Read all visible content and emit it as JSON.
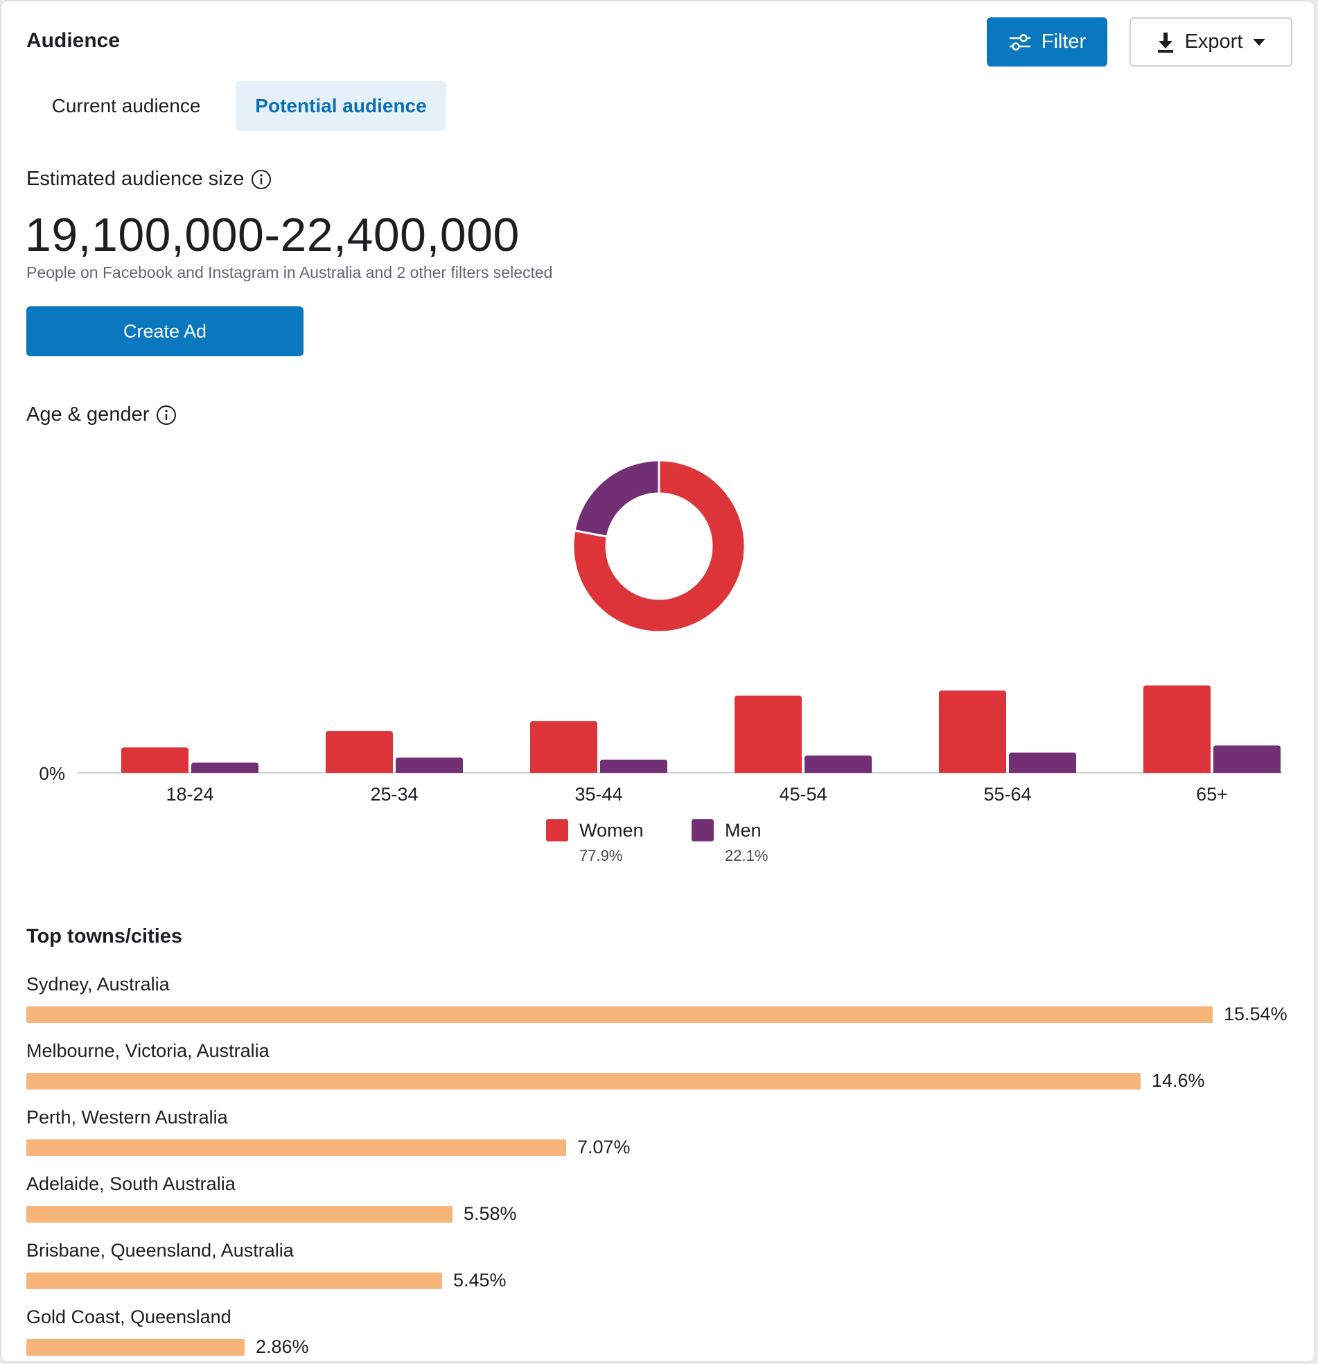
{
  "header": {
    "title": "Audience",
    "filter_label": "Filter",
    "export_label": "Export"
  },
  "tabs": [
    {
      "label": "Current audience",
      "selected": false
    },
    {
      "label": "Potential audience",
      "selected": true
    }
  ],
  "estimate": {
    "label": "Estimated audience size",
    "value": "19,100,000-22,400,000",
    "subtitle": "People on Facebook and Instagram in Australia and 2 other filters selected",
    "create_ad_label": "Create Ad"
  },
  "age_gender": {
    "label": "Age & gender"
  },
  "colors": {
    "women": "#dc3439",
    "men": "#722f74",
    "city_bar": "#f7b57a",
    "primary": "#0a78be"
  },
  "chart_data": [
    {
      "type": "pie",
      "subtype": "donut",
      "categories": [
        "Women",
        "Men"
      ],
      "values": [
        77.9,
        22.1
      ]
    },
    {
      "type": "bar",
      "categories": [
        "18-24",
        "25-34",
        "35-44",
        "45-54",
        "55-64",
        "65+"
      ],
      "series": [
        {
          "name": "Women",
          "values": [
            2.5,
            4.1,
            5.1,
            7.6,
            8.1,
            8.6
          ]
        },
        {
          "name": "Men",
          "values": [
            1.0,
            1.5,
            1.3,
            1.7,
            2.0,
            2.7
          ]
        }
      ],
      "y_tick_labels": [
        "0%"
      ],
      "legend": [
        {
          "name": "Women",
          "pct": "77.9%"
        },
        {
          "name": "Men",
          "pct": "22.1%"
        }
      ],
      "legend_position": "bottom"
    },
    {
      "type": "bar",
      "orientation": "horizontal",
      "title": "Top towns/cities",
      "categories": [
        "Sydney, Australia",
        "Melbourne, Victoria, Australia",
        "Perth, Western Australia",
        "Adelaide, South Australia",
        "Brisbane, Queensland, Australia",
        "Gold Coast, Queensland"
      ],
      "values": [
        15.54,
        14.6,
        7.07,
        5.58,
        5.45,
        2.86
      ],
      "value_labels": [
        "15.54%",
        "14.6%",
        "7.07%",
        "5.58%",
        "5.45%",
        "2.86%"
      ]
    }
  ]
}
